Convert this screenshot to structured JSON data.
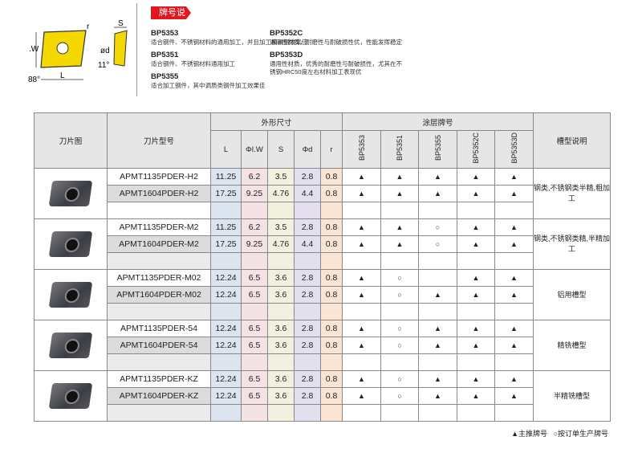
{
  "diagram": {
    "labels": {
      "r": "r",
      "s": "S",
      "w": ".W",
      "l": "L",
      "angle88": "88°",
      "phid": "ød",
      "angle11": "11°"
    },
    "insert_color": "#f5d800"
  },
  "section_title": "牌号说明",
  "grades": [
    {
      "name": "BP5353",
      "desc": "适合钢件、不锈钢材料的通用加工，并且加工模具钢效果佳"
    },
    {
      "name": "BP5351",
      "desc": "适合钢件、不锈钢材料通用加工"
    },
    {
      "name": "BP5355",
      "desc": "适合加工钢件，其中调质类钢件加工效果佳"
    },
    {
      "name": "BP5352C",
      "desc": "通用性材质，耐磨性与耐破损性优，性能发挥稳定"
    },
    {
      "name": "BP5353D",
      "desc": "通用性材质，优秀的耐磨性与耐破损性，尤其在不锈钢HRC50度左右材料加工表现优"
    }
  ],
  "table": {
    "headers": {
      "image": "刀片图",
      "model": "刀片型号",
      "dims": "外形尺寸",
      "coating": "涂层牌号",
      "groove": "槽型说明",
      "dim_cols": [
        "L",
        "ΦI.W",
        "S",
        "Φd",
        "r"
      ],
      "grade_cols": [
        "BP5353",
        "BP5351",
        "BP5355",
        "BP5352C",
        "BP5353D"
      ]
    },
    "groups": [
      {
        "groove": "钢类,不锈钢类半精,粗加工",
        "rows": [
          {
            "model": "APMT1135PDER-H2",
            "dims": [
              "11.25",
              "6.2",
              "3.5",
              "2.8",
              "0.8"
            ],
            "marks": [
              "▲",
              "▲",
              "▲",
              "▲",
              "▲"
            ]
          },
          {
            "model": "APMT1604PDER-H2",
            "dims": [
              "17.25",
              "9.25",
              "4.76",
              "4.4",
              "0.8"
            ],
            "marks": [
              "▲",
              "▲",
              "▲",
              "▲",
              "▲"
            ]
          }
        ]
      },
      {
        "groove": "钢类,不锈钢类精,半精加工",
        "rows": [
          {
            "model": "APMT1135PDER-M2",
            "dims": [
              "11.25",
              "6.2",
              "3.5",
              "2.8",
              "0.8"
            ],
            "marks": [
              "▲",
              "▲",
              "○",
              "▲",
              "▲"
            ]
          },
          {
            "model": "APMT1604PDER-M2",
            "dims": [
              "17.25",
              "9.25",
              "4.76",
              "4.4",
              "0.8"
            ],
            "marks": [
              "▲",
              "▲",
              "○",
              "▲",
              "▲"
            ]
          }
        ]
      },
      {
        "groove": "铝用槽型",
        "rows": [
          {
            "model": "APMT1135PDER-M02",
            "dims": [
              "12.24",
              "6.5",
              "3.6",
              "2.8",
              "0.8"
            ],
            "marks": [
              "▲",
              "○",
              "",
              "▲",
              "▲"
            ]
          },
          {
            "model": "APMT1604PDER-M02",
            "dims": [
              "12.24",
              "6.5",
              "3.6",
              "2.8",
              "0.8"
            ],
            "marks": [
              "▲",
              "○",
              "▲",
              "▲",
              "▲"
            ]
          }
        ]
      },
      {
        "groove": "精铣槽型",
        "rows": [
          {
            "model": "APMT1135PDER-54",
            "dims": [
              "12.24",
              "6.5",
              "3.6",
              "2.8",
              "0.8"
            ],
            "marks": [
              "▲",
              "○",
              "▲",
              "▲",
              "▲"
            ]
          },
          {
            "model": "APMT1604PDER-54",
            "dims": [
              "12.24",
              "6.5",
              "3.6",
              "2.8",
              "0.8"
            ],
            "marks": [
              "▲",
              "○",
              "▲",
              "▲",
              "▲"
            ]
          }
        ]
      },
      {
        "groove": "半精铣槽型",
        "rows": [
          {
            "model": "APMT1135PDER-KZ",
            "dims": [
              "12.24",
              "6.5",
              "3.6",
              "2.8",
              "0.8"
            ],
            "marks": [
              "▲",
              "○",
              "▲",
              "▲",
              "▲"
            ]
          },
          {
            "model": "APMT1604PDER-KZ",
            "dims": [
              "12.24",
              "6.5",
              "3.6",
              "2.8",
              "0.8"
            ],
            "marks": [
              "▲",
              "○",
              "▲",
              "▲",
              "▲"
            ]
          }
        ]
      }
    ]
  },
  "legend": {
    "main": "▲主推牌号",
    "order": "○按订单生产牌号"
  }
}
